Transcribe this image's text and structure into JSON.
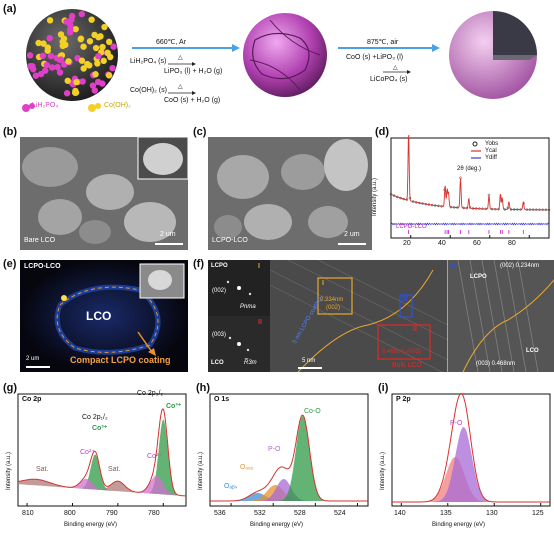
{
  "panels": {
    "a": {
      "label": "(a)",
      "legend": [
        "LiH₂PO₄",
        "Co(OH)₂"
      ],
      "step1_condition": "660℃, Ar",
      "step1_reactions": [
        "LiH₂PO₄ (s)",
        "LiPO₃ (l) + H₂O (g)",
        "Co(OH)₂ (s)",
        "CoO (s) + H₂O (g)"
      ],
      "heat_symbol": "△",
      "step2_condition": "875℃, air",
      "step2_reactions": [
        "CoO (s) +LiPO₃ (l)",
        "LiCoPO₄ (s)"
      ]
    },
    "b": {
      "label": "(b)",
      "caption": "Bare LCO",
      "scale": "2 um"
    },
    "c": {
      "label": "(c)",
      "caption": "LCPO-LCO",
      "scale": "2 um"
    },
    "d": {
      "label": "(d)",
      "legend": [
        "Yobs",
        "Ycal",
        "Ydiff"
      ],
      "ylabel": "Intensity (a.u.)",
      "xlabel": "2θ (deg.)",
      "sample": "LCPO-LCO",
      "xticks": [
        "20",
        "40",
        "60",
        "80"
      ]
    },
    "e": {
      "label": "(e)",
      "title": "LCPO-LCO",
      "region": "LCO",
      "annotation": "Compact LCPO coating",
      "scale": "2 um"
    },
    "f": {
      "label": "(f)",
      "fft_top": "LCPO",
      "fft_top_index": "(002)",
      "fft_top_group": "Pnma",
      "roman_I": "I",
      "fft_bot": "LCO",
      "fft_bot_index": "(003)",
      "fft_bot_group": "R̅3m",
      "roman_II": "II",
      "box_I": "I",
      "box_I_text": [
        "0.234nm",
        "(002)"
      ],
      "box_III": "III",
      "box_II": "II",
      "box_II_text": "0.468nm (003)",
      "coating_label": "5 nm LCPO coating",
      "bulk_label": "Bulk LCO",
      "scale": "5 nm",
      "zoom_III": "III",
      "zoom_top": "(002) 0.234nm",
      "zoom_lcpo": "LCPO",
      "zoom_lco": "LCO",
      "zoom_bot": "(003) 0.468nm"
    },
    "g": {
      "label": "(g)",
      "title": "Co 2p",
      "ylabel": "Intensity (a.u.)",
      "xlabel": "Binding energy (eV)",
      "xticks": [
        "810",
        "800",
        "790",
        "780"
      ],
      "annotations": [
        "Co 2p₁/₂",
        "Co³⁺",
        "Co 2p₃/₂",
        "Co³⁺",
        "Co²⁺",
        "Sat.",
        "Sat.",
        "Co²⁺"
      ]
    },
    "h": {
      "label": "(h)",
      "title": "O 1s",
      "ylabel": "Intensity (a.u.)",
      "xlabel": "Binding energy (eV)",
      "xticks": [
        "536",
        "532",
        "528",
        "524"
      ],
      "annotations": [
        "Co-O",
        "P-O",
        "Oₒₑₒ",
        "Oₐᵦₛ"
      ]
    },
    "i": {
      "label": "(i)",
      "title": "P 2p",
      "ylabel": "Intensity (a.u.)",
      "xlabel": "Binding energy (eV)",
      "xticks": [
        "140",
        "135",
        "130",
        "125"
      ],
      "annotations": [
        "P-O"
      ]
    }
  },
  "colors": {
    "blue": "#3c8fd6",
    "red": "#d6322f",
    "magenta": "#e040c8",
    "green": "#2e9a46",
    "purple": "#a86ad6",
    "orange": "#e8912e"
  }
}
